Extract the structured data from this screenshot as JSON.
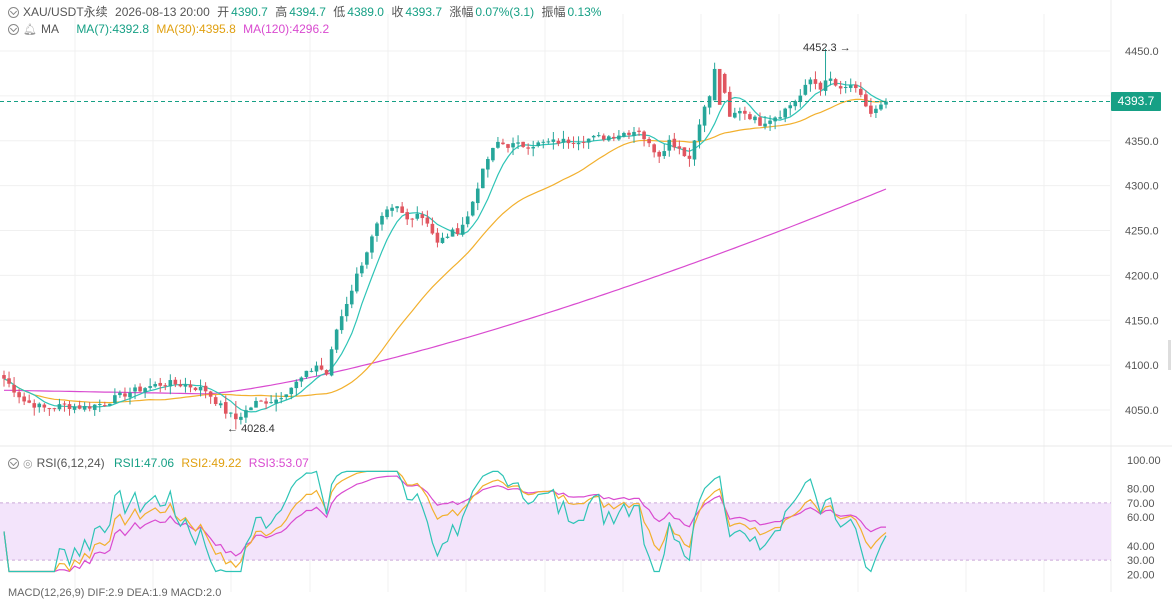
{
  "header": {
    "symbol": "XAU/USDT永续",
    "datetime": "2026-08-13 20:00",
    "open_label": "开",
    "open": "4390.7",
    "high_label": "高",
    "high": "4394.7",
    "low_label": "低",
    "low": "4389.0",
    "close_label": "收",
    "close": "4393.7",
    "change_label": "涨幅",
    "change": "0.07%(3.1)",
    "amp_label": "振幅",
    "amp": "0.13%"
  },
  "ma_legend": {
    "title": "MA",
    "ma7": "MA(7):4392.8",
    "ma30": "MA(30):4395.8",
    "ma120": "MA(120):4296.2"
  },
  "rsi_legend": {
    "title": "RSI(6,12,24)",
    "rsi1": "RSI1:47.06",
    "rsi2": "RSI2:49.22",
    "rsi3": "RSI3:53.07"
  },
  "colors": {
    "up": "#26a69a",
    "down": "#e0555f",
    "ma7": "#2ec4b6",
    "ma30": "#f2b02e",
    "ma120": "#d94bd0",
    "rsi1": "#2ec4b6",
    "rsi2": "#f2b02e",
    "rsi3": "#d94bd0",
    "rsi_band": "#f3e4fb",
    "current_price": "#16a085"
  },
  "chart_data": [
    {
      "type": "candlestick",
      "title": "",
      "ylim": [
        4010,
        4470
      ],
      "y_ticks": [
        "4450.0",
        "4400.0",
        "4350.0",
        "4300.0",
        "4250.0",
        "4200.0",
        "4150.0",
        "4100.0",
        "4050.0"
      ],
      "y_tick_values": [
        4450,
        4400,
        4350,
        4300,
        4250,
        4200,
        4150,
        4100,
        4050
      ],
      "current_price": "4393.7",
      "current_price_value": 4393.7,
      "max_label": "4452.3",
      "max_value": 4452.3,
      "min_label": "4028.4",
      "min_value": 4028.4,
      "anchors": [
        [
          0,
          4085
        ],
        [
          4,
          4060
        ],
        [
          8,
          4052
        ],
        [
          12,
          4055
        ],
        [
          16,
          4053
        ],
        [
          20,
          4058
        ],
        [
          24,
          4068
        ],
        [
          28,
          4075
        ],
        [
          32,
          4080
        ],
        [
          36,
          4078
        ],
        [
          40,
          4072
        ],
        [
          44,
          4048
        ],
        [
          46,
          4040
        ],
        [
          50,
          4058
        ],
        [
          54,
          4062
        ],
        [
          58,
          4080
        ],
        [
          62,
          4100
        ],
        [
          64,
          4090
        ],
        [
          66,
          4140
        ],
        [
          70,
          4200
        ],
        [
          74,
          4255
        ],
        [
          76,
          4270
        ],
        [
          78,
          4275
        ],
        [
          80,
          4262
        ],
        [
          82,
          4270
        ],
        [
          84,
          4260
        ],
        [
          86,
          4235
        ],
        [
          88,
          4245
        ],
        [
          90,
          4250
        ],
        [
          92,
          4265
        ],
        [
          94,
          4300
        ],
        [
          96,
          4330
        ],
        [
          98,
          4348
        ],
        [
          100,
          4345
        ],
        [
          104,
          4345
        ],
        [
          108,
          4348
        ],
        [
          112,
          4350
        ],
        [
          116,
          4352
        ],
        [
          120,
          4355
        ],
        [
          124,
          4360
        ],
        [
          126,
          4362
        ],
        [
          128,
          4345
        ],
        [
          130,
          4335
        ],
        [
          132,
          4350
        ],
        [
          134,
          4342
        ],
        [
          136,
          4330
        ],
        [
          138,
          4372
        ],
        [
          140,
          4400
        ],
        [
          142,
          4425
        ],
        [
          144,
          4375
        ],
        [
          146,
          4385
        ],
        [
          150,
          4370
        ],
        [
          154,
          4380
        ],
        [
          158,
          4400
        ],
        [
          160,
          4418
        ],
        [
          162,
          4410
        ],
        [
          164,
          4418
        ],
        [
          166,
          4405
        ],
        [
          168,
          4412
        ],
        [
          170,
          4398
        ],
        [
          172,
          4380
        ],
        [
          174,
          4388
        ],
        [
          175,
          4393.7
        ]
      ]
    },
    {
      "type": "line",
      "title": "RSI(6,12,24)",
      "ylim": [
        20,
        100
      ],
      "y_ticks": [
        "100.00",
        "80.00",
        "70.00",
        "60.00",
        "40.00",
        "30.00",
        "20.00"
      ],
      "y_tick_values": [
        100,
        80,
        70,
        60,
        40,
        30,
        20
      ],
      "band": [
        30,
        70
      ],
      "series": [
        {
          "name": "RSI1",
          "value": 47.06
        },
        {
          "name": "RSI2",
          "value": 49.22
        },
        {
          "name": "RSI3",
          "value": 53.07
        }
      ]
    }
  ],
  "third_panel_partial": "MACD(12,26,9) DIF:2.9 DEA:1.9 MACD:2.0"
}
